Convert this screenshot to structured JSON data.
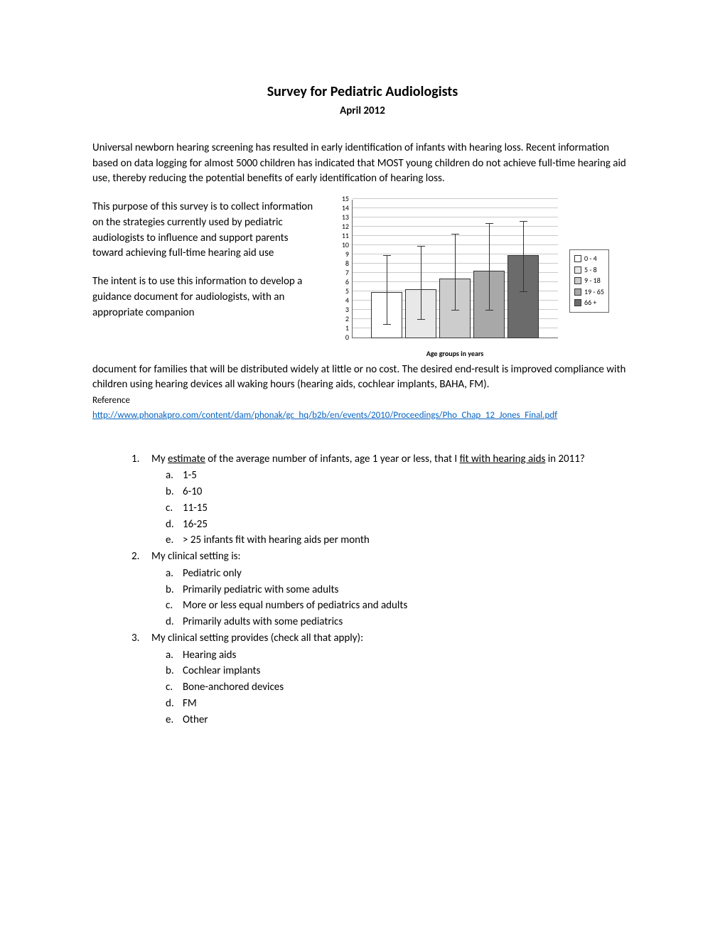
{
  "title": "Survey for Pediatric Audiologists",
  "subtitle": "April 2012",
  "intro_para": "Universal newborn hearing screening has resulted in early identification of infants with hearing loss. Recent information based on data logging for almost 5000 children has indicated that MOST young children do not achieve full-time hearing aid use, thereby reducing the potential benefits of early identification of hearing loss.",
  "left_para_1": "This purpose of this survey is to collect information on the strategies currently used by pediatric audiologists to influence and support parents toward achieving full-time hearing aid use",
  "left_para_2": "The intent is to use this information to develop a guidance document for audiologists, with an appropriate companion",
  "continuation_para": "document for families that will be distributed widely at little or no cost.  The desired end-result is improved compliance with children using hearing devices all waking hours (hearing aids, cochlear implants, BAHA, FM).",
  "reference_label": "Reference",
  "reference_url": "http://www.phonakpro.com/content/dam/phonak/gc_hq/b2b/en/events/2010/Proceedings/Pho_Chap_12_Jones_Final.pdf",
  "chart": {
    "type": "bar",
    "ymax": 15,
    "ytick_step": 1,
    "yticks": [
      "0",
      "1",
      "2",
      "3",
      "4",
      "5",
      "6",
      "7",
      "8",
      "9",
      "10",
      "11",
      "12",
      "13",
      "14",
      "15"
    ],
    "xaxis_label": "Age groups in years",
    "bars": [
      {
        "value": 5.0,
        "err_low": 1.5,
        "err_high": 9.0,
        "color": "#ffffff"
      },
      {
        "value": 5.3,
        "err_low": 2.0,
        "err_high": 10.0,
        "color": "#e8e8e8"
      },
      {
        "value": 6.5,
        "err_low": 3.0,
        "err_high": 11.3,
        "color": "#cccccc"
      },
      {
        "value": 7.3,
        "err_low": 3.0,
        "err_high": 12.5,
        "color": "#a8a8a8"
      },
      {
        "value": 9.0,
        "err_low": 5.0,
        "err_high": 12.7,
        "color": "#6b6b6b"
      }
    ],
    "legend": [
      {
        "label": "0 -  4",
        "color": "#ffffff"
      },
      {
        "label": "5 -  8",
        "color": "#e8e8e8"
      },
      {
        "label": "9 -  18",
        "color": "#cccccc"
      },
      {
        "label": "19 - 65",
        "color": "#a8a8a8"
      },
      {
        "label": "66 +",
        "color": "#6b6b6b"
      }
    ],
    "grid_color": "#cacaca",
    "axis_color": "#666666"
  },
  "questions": [
    {
      "num": "1.",
      "text_pre": "My ",
      "text_u1": "estimate",
      "text_mid": " of the average number of infants, age 1 year or less, that I ",
      "text_u2": "fit with hearing aids",
      "text_post": " in 2011?",
      "opts": [
        {
          "l": "a.",
          "t": "1-5"
        },
        {
          "l": "b.",
          "t": "6-10"
        },
        {
          "l": "c.",
          "t": "11-15"
        },
        {
          "l": "d.",
          "t": "16-25"
        },
        {
          "l": "e.",
          "t": "> 25 infants fit with hearing aids per month"
        }
      ]
    },
    {
      "num": "2.",
      "text": "My clinical setting is:",
      "opts": [
        {
          "l": "a.",
          "t": "Pediatric only"
        },
        {
          "l": "b.",
          "t": "Primarily pediatric with some adults"
        },
        {
          "l": "c.",
          "t": "More or less equal numbers of pediatrics and adults"
        },
        {
          "l": "d.",
          "t": "Primarily adults with some pediatrics"
        }
      ]
    },
    {
      "num": "3.",
      "text": "My clinical setting provides (check all that apply):",
      "opts": [
        {
          "l": "a.",
          "t": "Hearing aids"
        },
        {
          "l": "b.",
          "t": "Cochlear implants"
        },
        {
          "l": "c.",
          "t": "Bone-anchored devices"
        },
        {
          "l": "d.",
          "t": "FM"
        },
        {
          "l": "e.",
          "t": "Other"
        }
      ]
    }
  ]
}
